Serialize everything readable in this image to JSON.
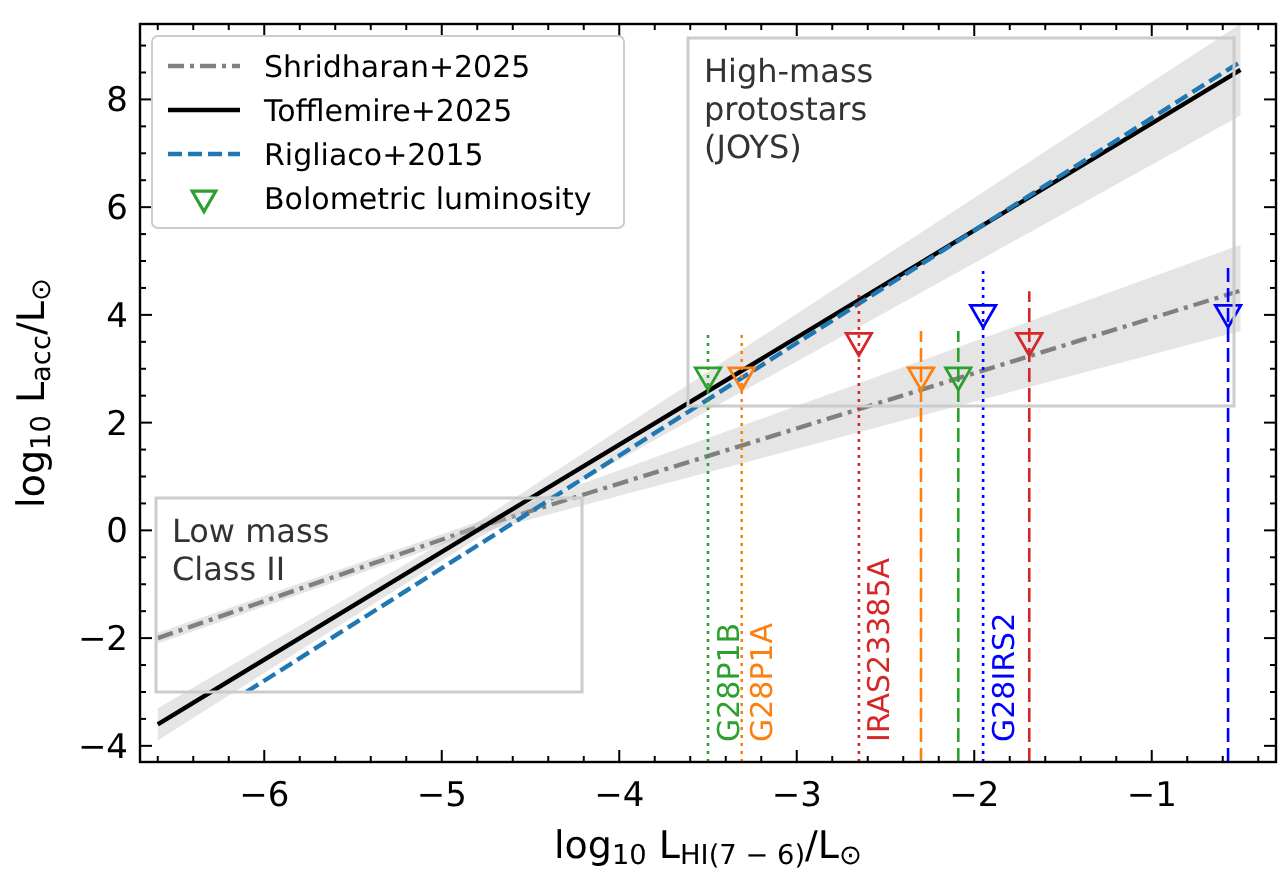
{
  "chart_data": {
    "type": "line",
    "xlabel": "log$_{10}$ L$_{HI(7 − 6)}$/L$_{⊙}$",
    "ylabel": "log$_{10}$ L$_{acc}$/L$_{⊙}$",
    "xlim": [
      -6.7,
      -0.3
    ],
    "ylim": [
      -4.3,
      9.4
    ],
    "xticks": [
      {
        "value": -6.6,
        "label": null
      },
      {
        "value": -6.4,
        "label": null
      },
      {
        "value": -6.2,
        "label": null
      },
      {
        "value": -6,
        "label": "−6"
      },
      {
        "value": -5.8,
        "label": null
      },
      {
        "value": -5.6,
        "label": null
      },
      {
        "value": -5.4,
        "label": null
      },
      {
        "value": -5.2,
        "label": null
      },
      {
        "value": -5,
        "label": "−5"
      },
      {
        "value": -4.8,
        "label": null
      },
      {
        "value": -4.6,
        "label": null
      },
      {
        "value": -4.4,
        "label": null
      },
      {
        "value": -4.2,
        "label": null
      },
      {
        "value": -4,
        "label": "−4"
      },
      {
        "value": -3.8,
        "label": null
      },
      {
        "value": -3.6,
        "label": null
      },
      {
        "value": -3.4,
        "label": null
      },
      {
        "value": -3.2,
        "label": null
      },
      {
        "value": -3,
        "label": "−3"
      },
      {
        "value": -2.8,
        "label": null
      },
      {
        "value": -2.6,
        "label": null
      },
      {
        "value": -2.4,
        "label": null
      },
      {
        "value": -2.2,
        "label": null
      },
      {
        "value": -2,
        "label": "−2"
      },
      {
        "value": -1.8,
        "label": null
      },
      {
        "value": -1.6,
        "label": null
      },
      {
        "value": -1.4,
        "label": null
      },
      {
        "value": -1.2,
        "label": null
      },
      {
        "value": -1,
        "label": "−1"
      },
      {
        "value": -0.8,
        "label": null
      },
      {
        "value": -0.6,
        "label": null
      },
      {
        "value": -0.4,
        "label": null
      }
    ],
    "yticks": [
      {
        "value": -4,
        "label": "−4"
      },
      {
        "value": -3.5,
        "label": null
      },
      {
        "value": -3,
        "label": null
      },
      {
        "value": -2.5,
        "label": null
      },
      {
        "value": -2,
        "label": "−2"
      },
      {
        "value": -1.5,
        "label": null
      },
      {
        "value": -1,
        "label": null
      },
      {
        "value": -0.5,
        "label": null
      },
      0,
      {
        "value": 0.5,
        "label": null
      },
      {
        "value": 1,
        "label": null
      },
      {
        "value": 1.5,
        "label": null
      },
      2,
      {
        "value": 2.5,
        "label": null
      },
      {
        "value": 3,
        "label": null
      },
      {
        "value": 3.5,
        "label": null
      },
      4,
      {
        "value": 4.5,
        "label": null
      },
      {
        "value": 5,
        "label": null
      },
      {
        "value": 5.5,
        "label": null
      },
      6,
      {
        "value": 6.5,
        "label": null
      },
      {
        "value": 7,
        "label": null
      },
      {
        "value": 7.5,
        "label": null
      },
      8,
      {
        "value": 8.5,
        "label": null
      },
      {
        "value": 9,
        "label": null
      }
    ],
    "grid": false,
    "legend": "top left",
    "annotations": [
      "Low mass\nClass II",
      "High-mass\nprotostars\n(JOYS)"
    ],
    "series": [
      {
        "name": "Shridharan+2025",
        "color": "#808080",
        "line_style": "dashdot",
        "x": [
          -6.6,
          -4.85,
          -0.5
        ],
        "values": [
          -2.0,
          0,
          4.45
        ],
        "lower": [
          -2.1,
          -0.1,
          3.7
        ],
        "upper": [
          -1.9,
          0.1,
          5.3
        ]
      },
      {
        "name": "Tofflemire+2025",
        "color": "#000000",
        "line_style": "solid",
        "x": [
          -6.6,
          -4.8,
          -0.5
        ],
        "values": [
          -3.6,
          0,
          8.55
        ],
        "lower": [
          -3.9,
          -0.15,
          7.7
        ],
        "upper": [
          -3.3,
          0.15,
          9.4
        ]
      },
      {
        "name": "Rigliaco+2015",
        "color": "#1f77b4",
        "line_style": "dashed",
        "x": [
          -6.1,
          -0.5
        ],
        "values": [
          -3.0,
          8.7
        ]
      },
      {
        "name": "G28P1B",
        "color": "#2ca02c",
        "line_style": "dotted",
        "x": [
          -3.5,
          -3.5
        ],
        "values": [
          -4.3,
          3.7
        ]
      },
      {
        "name": "G28P1A",
        "color": "#ff7f0e",
        "line_style": "dotted",
        "x": [
          -3.31,
          -3.31
        ],
        "values": [
          -4.3,
          3.7
        ]
      },
      {
        "name": "IRAS23385A",
        "color": "#d62728",
        "line_style": "dotted",
        "x": [
          -2.65,
          -2.65
        ],
        "values": [
          -4.3,
          4.44
        ]
      },
      {
        "color": "#ff7f0e",
        "line_style": "dashed",
        "x": [
          -2.3,
          -2.3
        ],
        "values": [
          -4.3,
          3.7
        ]
      },
      {
        "color": "#2ca02c",
        "line_style": "dashed",
        "x": [
          -2.09,
          -2.09
        ],
        "values": [
          -4.3,
          3.7
        ]
      },
      {
        "name": "G28IRS2",
        "color": "#0000ff",
        "line_style": "dotted",
        "x": [
          -1.95,
          -1.95
        ],
        "values": [
          -4.3,
          4.9
        ]
      },
      {
        "color": "#d62728",
        "line_style": "dashed",
        "x": [
          -1.69,
          -1.69
        ],
        "values": [
          -4.3,
          4.44
        ]
      },
      {
        "color": "#0000ff",
        "line_style": "dashed",
        "x": [
          -0.57,
          -0.57
        ],
        "values": [
          -4.3,
          4.9
        ]
      },
      {
        "name": "Bolometric luminosity",
        "type": "scatter",
        "marker": "triangle",
        "x": [
          -3.5,
          -3.31,
          -2.65,
          -2.3,
          -2.09,
          -1.95,
          -1.69,
          -0.57
        ],
        "values": [
          2.88,
          2.88,
          3.52,
          2.88,
          2.88,
          4.04,
          3.52,
          4.04
        ],
        "colors": [
          "#2ca02c",
          "#ff7f0e",
          "#d62728",
          "#ff7f0e",
          "#2ca02c",
          "#0000ff",
          "#d62728",
          "#0000ff"
        ]
      }
    ]
  }
}
